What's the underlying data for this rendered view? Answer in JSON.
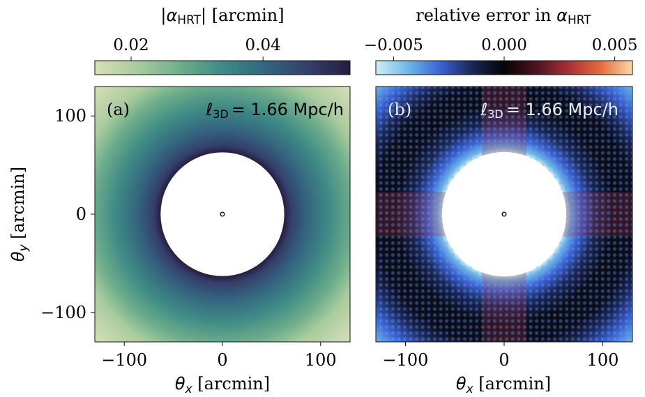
{
  "chart_data": [
    {
      "type": "heatmap",
      "panel_label": "(a)",
      "annotation": {
        "lhs": "ℓ",
        "sub": "3D",
        "rhs": "= 1.66 Mpc/h"
      },
      "colorbar": {
        "label_prefix": "|",
        "symbol": "α",
        "symbol_sub": "HRT",
        "label_suffix": "| [arcmin]",
        "ticks": [
          0.02,
          0.04
        ],
        "tick_labels": [
          "0.02",
          "0.04"
        ],
        "range": [
          0.0145,
          0.0532
        ],
        "colormap": [
          "#d8dfb8",
          "#a9cb9e",
          "#6fae8c",
          "#3f8a86",
          "#34657f",
          "#343f6b",
          "#261d3f"
        ]
      },
      "xlabel": {
        "symbol": "θ",
        "sub": "x",
        "text": " [arcmin]"
      },
      "ylabel": {
        "symbol": "θ",
        "sub": "y",
        "text": " [arcmin]"
      },
      "xlim": [
        -130,
        130
      ],
      "ylim": [
        -130,
        130
      ],
      "xticks": [
        -100,
        0,
        100
      ],
      "xtick_labels": [
        "−100",
        "0",
        "100"
      ],
      "yticks": [
        -100,
        0,
        100
      ],
      "ytick_labels": [
        "−100",
        "0",
        "100"
      ],
      "masked_radius": 63,
      "center_marker_radius": 2
    },
    {
      "type": "heatmap",
      "panel_label": "(b)",
      "annotation": {
        "lhs": "ℓ",
        "sub": "3D",
        "rhs": "= 1.66 Mpc/h"
      },
      "colorbar": {
        "label_prefix": "relative error in ",
        "symbol": "α",
        "symbol_sub": "HRT",
        "label_suffix": "",
        "ticks": [
          -0.005,
          0.0,
          0.005
        ],
        "tick_labels": [
          "−0.005",
          "0.000",
          "0.005"
        ],
        "range": [
          -0.0058,
          0.0058
        ],
        "colormap": [
          "#d2eef2",
          "#6fb7e6",
          "#3a63d3",
          "#1b2656",
          "#050507",
          "#4a1420",
          "#a63037",
          "#e36b40",
          "#f8d9a8"
        ]
      },
      "xlabel": {
        "symbol": "θ",
        "sub": "x",
        "text": " [arcmin]"
      },
      "xlim": [
        -130,
        130
      ],
      "ylim": [
        -130,
        130
      ],
      "xticks": [
        -100,
        0,
        100
      ],
      "xtick_labels": [
        "−100",
        "0",
        "100"
      ],
      "masked_radius": 63,
      "center_marker_radius": 2
    }
  ]
}
